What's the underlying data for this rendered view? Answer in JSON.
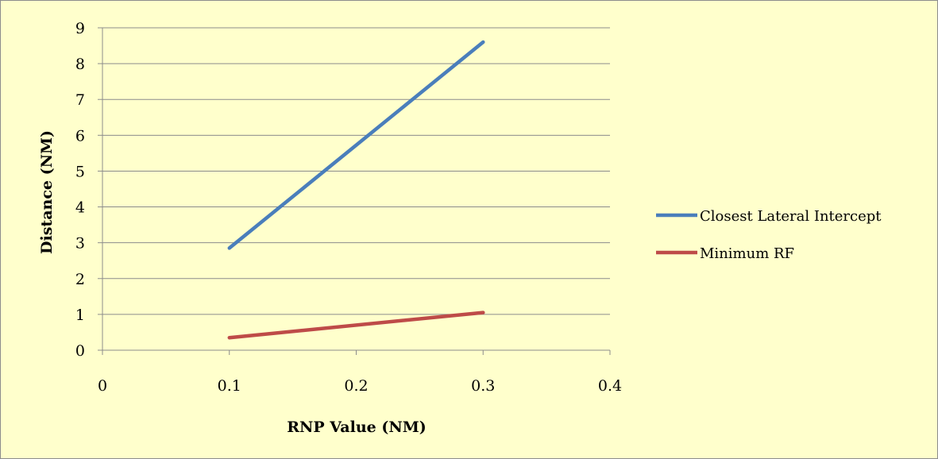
{
  "chart_data": {
    "type": "line",
    "title": "",
    "xlabel": "RNP Value (NM)",
    "ylabel": "Distance (NM)",
    "xlim": [
      0,
      0.4
    ],
    "ylim": [
      0,
      9
    ],
    "x_ticks": [
      0,
      0.1,
      0.2,
      0.3,
      0.4
    ],
    "x_tick_labels": [
      "0",
      "0.1",
      "0.2",
      "0.3",
      "0.4"
    ],
    "y_ticks": [
      0,
      1,
      2,
      3,
      4,
      5,
      6,
      7,
      8,
      9
    ],
    "y_tick_labels": [
      "0",
      "1",
      "2",
      "3",
      "4",
      "5",
      "6",
      "7",
      "8",
      "9"
    ],
    "grid": "horizontal",
    "legend_position": "right",
    "background_color": "#ffffcc",
    "series": [
      {
        "name": "Closest Lateral Intercept",
        "color": "#4a7ebb",
        "x": [
          0.1,
          0.3
        ],
        "y": [
          2.85,
          8.6
        ]
      },
      {
        "name": "Minimum RF",
        "color": "#be4b48",
        "x": [
          0.1,
          0.3
        ],
        "y": [
          0.35,
          1.05
        ]
      }
    ]
  }
}
